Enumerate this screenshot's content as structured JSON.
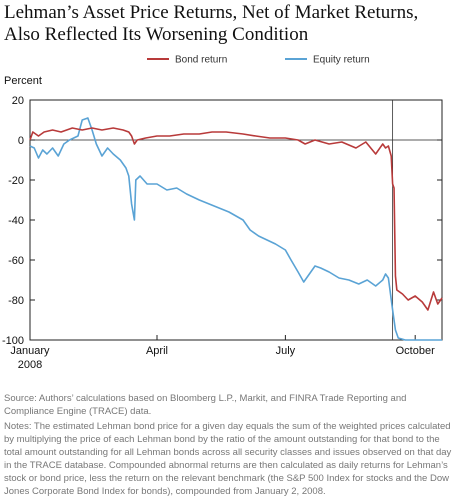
{
  "title_lines": [
    "Lehman’s Asset Price Returns, Net of Market Returns,",
    "Also Reflected Its Worsening Condition"
  ],
  "source": "Source: Authors’ calculations based on Bloomberg L.P., Markit, and FINRA Trade Reporting and Compliance Engine (TRACE) data.",
  "notes": "Notes: The estimated Lehman bond price for a given day equals the sum of the weighted prices calculated by multiplying the price of each Lehman bond by the ratio of the amount outstanding for that bond to the total amount outstanding for all Lehman bonds across all security classes and issues observed on that day in the TRACE database. Compounded abnormal returns are then calculated as daily returns for Lehman’s stock or bond price, less the return on the relevant benchmark (the S&P 500 Index for stocks and the Dow Jones Corporate Bond Index for bonds), compounded from January 2, 2008.",
  "colors": {
    "bond": "#b83a3a",
    "equity": "#5aa3d5",
    "zero_line": "#222222",
    "event_line": "#333333"
  },
  "chart_data": {
    "type": "line",
    "title": "",
    "ylabel": "Percent",
    "ylim": [
      -100,
      20
    ],
    "yticks": [
      20,
      0,
      -20,
      -40,
      -60,
      -80,
      -100
    ],
    "xlim": [
      "2008-01-02",
      "2008-10-20"
    ],
    "xtick_labels": [
      {
        "date": "2008-01-02",
        "lines": [
          "January",
          "2008"
        ]
      },
      {
        "date": "2008-04-01",
        "lines": [
          "April"
        ]
      },
      {
        "date": "2008-07-01",
        "lines": [
          "July"
        ]
      },
      {
        "date": "2008-10-01",
        "lines": [
          "October"
        ]
      }
    ],
    "event_date": "2008-09-15",
    "legend_position": "top",
    "series": [
      {
        "name": "Bond return",
        "color": "#b83a3a",
        "points": [
          [
            "2008-01-02",
            0
          ],
          [
            "2008-01-04",
            4
          ],
          [
            "2008-01-08",
            2
          ],
          [
            "2008-01-12",
            4
          ],
          [
            "2008-01-18",
            5
          ],
          [
            "2008-01-24",
            4
          ],
          [
            "2008-02-01",
            6
          ],
          [
            "2008-02-08",
            5
          ],
          [
            "2008-02-15",
            6
          ],
          [
            "2008-02-22",
            5
          ],
          [
            "2008-03-01",
            6
          ],
          [
            "2008-03-08",
            5
          ],
          [
            "2008-03-12",
            4
          ],
          [
            "2008-03-14",
            2
          ],
          [
            "2008-03-16",
            -2
          ],
          [
            "2008-03-18",
            0
          ],
          [
            "2008-03-24",
            1
          ],
          [
            "2008-04-01",
            2
          ],
          [
            "2008-04-10",
            2
          ],
          [
            "2008-04-20",
            3
          ],
          [
            "2008-05-01",
            3
          ],
          [
            "2008-05-10",
            4
          ],
          [
            "2008-05-20",
            4
          ],
          [
            "2008-06-01",
            3
          ],
          [
            "2008-06-10",
            2
          ],
          [
            "2008-06-20",
            1
          ],
          [
            "2008-07-01",
            1
          ],
          [
            "2008-07-10",
            0
          ],
          [
            "2008-07-15",
            -2
          ],
          [
            "2008-07-22",
            0
          ],
          [
            "2008-08-01",
            -2
          ],
          [
            "2008-08-10",
            -1
          ],
          [
            "2008-08-20",
            -4
          ],
          [
            "2008-08-27",
            -1
          ],
          [
            "2008-09-03",
            -7
          ],
          [
            "2008-09-08",
            -2
          ],
          [
            "2008-09-10",
            -4
          ],
          [
            "2008-09-12",
            -3
          ],
          [
            "2008-09-14",
            -8
          ],
          [
            "2008-09-15",
            -22
          ],
          [
            "2008-09-16",
            -24
          ],
          [
            "2008-09-17",
            -68
          ],
          [
            "2008-09-18",
            -75
          ],
          [
            "2008-09-22",
            -77
          ],
          [
            "2008-09-26",
            -80
          ],
          [
            "2008-10-01",
            -78
          ],
          [
            "2008-10-06",
            -81
          ],
          [
            "2008-10-10",
            -85
          ],
          [
            "2008-10-14",
            -76
          ],
          [
            "2008-10-17",
            -82
          ],
          [
            "2008-10-20",
            -79
          ]
        ]
      },
      {
        "name": "Equity return",
        "color": "#5aa3d5",
        "points": [
          [
            "2008-01-02",
            -3
          ],
          [
            "2008-01-05",
            -4
          ],
          [
            "2008-01-08",
            -9
          ],
          [
            "2008-01-11",
            -5
          ],
          [
            "2008-01-14",
            -7
          ],
          [
            "2008-01-18",
            -4
          ],
          [
            "2008-01-22",
            -8
          ],
          [
            "2008-01-26",
            -2
          ],
          [
            "2008-01-30",
            0
          ],
          [
            "2008-02-05",
            2
          ],
          [
            "2008-02-08",
            10
          ],
          [
            "2008-02-12",
            11
          ],
          [
            "2008-02-15",
            5
          ],
          [
            "2008-02-18",
            -2
          ],
          [
            "2008-02-22",
            -8
          ],
          [
            "2008-02-26",
            -4
          ],
          [
            "2008-03-01",
            -7
          ],
          [
            "2008-03-06",
            -10
          ],
          [
            "2008-03-10",
            -14
          ],
          [
            "2008-03-12",
            -18
          ],
          [
            "2008-03-14",
            -32
          ],
          [
            "2008-03-16",
            -40
          ],
          [
            "2008-03-17",
            -20
          ],
          [
            "2008-03-20",
            -18
          ],
          [
            "2008-03-25",
            -22
          ],
          [
            "2008-04-01",
            -22
          ],
          [
            "2008-04-08",
            -25
          ],
          [
            "2008-04-15",
            -24
          ],
          [
            "2008-04-22",
            -27
          ],
          [
            "2008-05-01",
            -30
          ],
          [
            "2008-05-08",
            -32
          ],
          [
            "2008-05-15",
            -34
          ],
          [
            "2008-05-22",
            -36
          ],
          [
            "2008-06-01",
            -40
          ],
          [
            "2008-06-06",
            -45
          ],
          [
            "2008-06-12",
            -48
          ],
          [
            "2008-06-18",
            -50
          ],
          [
            "2008-06-24",
            -52
          ],
          [
            "2008-07-01",
            -55
          ],
          [
            "2008-07-05",
            -60
          ],
          [
            "2008-07-10",
            -66
          ],
          [
            "2008-07-14",
            -71
          ],
          [
            "2008-07-18",
            -67
          ],
          [
            "2008-07-22",
            -63
          ],
          [
            "2008-07-26",
            -64
          ],
          [
            "2008-08-01",
            -66
          ],
          [
            "2008-08-08",
            -69
          ],
          [
            "2008-08-15",
            -70
          ],
          [
            "2008-08-22",
            -72
          ],
          [
            "2008-08-28",
            -70
          ],
          [
            "2008-09-03",
            -73
          ],
          [
            "2008-09-08",
            -70
          ],
          [
            "2008-09-10",
            -67
          ],
          [
            "2008-09-12",
            -69
          ],
          [
            "2008-09-15",
            -85
          ],
          [
            "2008-09-17",
            -95
          ],
          [
            "2008-09-19",
            -99
          ],
          [
            "2008-09-24",
            -100
          ],
          [
            "2008-10-01",
            -100
          ],
          [
            "2008-10-10",
            -100
          ],
          [
            "2008-10-20",
            -100
          ]
        ]
      }
    ]
  }
}
